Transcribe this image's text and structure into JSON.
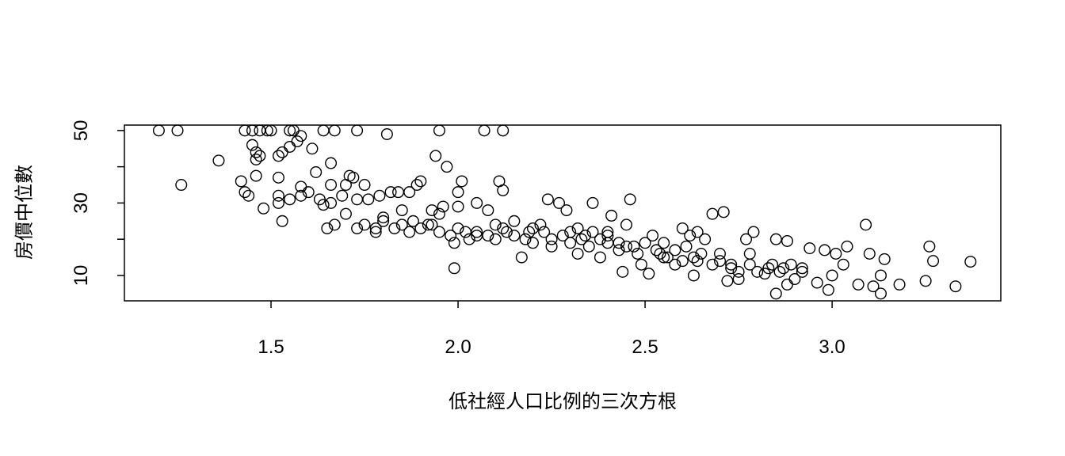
{
  "chart_data": {
    "type": "scatter",
    "xlabel": "低社經人口比例的三次方根",
    "ylabel": "房價中位數",
    "xlim": [
      1.108,
      3.451
    ],
    "ylim": [
      3.0,
      51.5
    ],
    "xticks": [
      1.5,
      {
        "value": 2,
        "label": "2.0"
      },
      2.5,
      {
        "value": 3,
        "label": "3.0"
      }
    ],
    "yticks": [
      10,
      30,
      50
    ],
    "yticks_unlabeled": [
      20,
      40
    ],
    "marker_color": "#000000",
    "x": [
      1.2,
      1.25,
      1.43,
      1.45,
      1.47,
      1.49,
      1.5,
      1.55,
      1.56,
      1.64,
      1.67,
      1.73,
      1.95,
      2.07,
      2.12,
      1.81,
      1.58,
      1.57,
      1.45,
      1.61,
      1.55,
      1.53,
      1.46,
      1.47,
      1.46,
      1.52,
      1.36,
      1.66,
      1.94,
      1.97,
      1.26,
      1.42,
      1.43,
      1.44,
      1.46,
      1.52,
      1.62,
      1.71,
      1.72,
      1.7,
      1.66,
      1.75,
      1.9,
      2.11,
      2.01,
      2.12,
      1.52,
      1.55,
      1.58,
      1.58,
      1.6,
      1.63,
      1.64,
      1.66,
      1.69,
      1.73,
      1.76,
      1.79,
      1.82,
      1.84,
      1.87,
      1.89,
      1.93,
      1.96,
      2.0,
      2.0,
      2.05,
      2.08,
      1.48,
      1.52,
      1.53,
      1.65,
      1.67,
      1.7,
      1.73,
      1.78,
      1.8,
      1.85,
      1.88,
      1.92,
      1.95,
      1.99,
      1.99,
      2.02,
      2.05,
      2.1,
      2.12,
      2.15,
      2.17,
      2.19,
      2.2,
      2.22,
      2.24,
      2.25,
      2.27,
      2.29,
      2.3,
      2.32,
      2.34,
      2.36,
      2.38,
      2.4,
      2.41,
      2.43,
      2.44,
      2.45,
      2.46,
      2.47,
      2.49,
      2.51,
      2.52,
      2.54,
      2.56,
      2.58,
      2.6,
      2.61,
      2.63,
      2.64,
      2.66,
      2.68,
      2.7,
      2.71,
      2.72,
      2.73,
      2.75,
      2.77,
      2.78,
      2.79,
      2.82,
      2.84,
      2.85,
      2.85,
      2.87,
      2.88,
      2.88,
      2.9,
      2.92,
      2.94,
      2.96,
      2.98,
      2.99,
      3.0,
      3.01,
      3.03,
      3.04,
      3.07,
      3.09,
      3.1,
      3.11,
      3.13,
      3.13,
      3.14,
      3.18,
      3.25,
      3.26,
      3.27,
      3.33,
      3.37,
      1.75,
      1.78,
      1.8,
      1.83,
      1.85,
      1.87,
      1.9,
      1.93,
      1.95,
      1.98,
      2.0,
      2.03,
      2.05,
      2.08,
      2.1,
      2.13,
      2.15,
      2.18,
      2.2,
      2.23,
      2.25,
      2.28,
      2.3,
      2.33,
      2.35,
      2.38,
      2.4,
      2.43,
      2.45,
      2.48,
      2.5,
      2.53,
      2.55,
      2.58,
      2.6,
      2.63,
      2.65,
      2.68,
      2.7,
      2.73,
      2.75,
      2.78,
      2.8,
      2.83,
      2.86,
      2.89,
      2.92,
      2.32,
      2.36,
      2.4,
      2.55,
      2.62,
      2.64
    ],
    "values": [
      50,
      50,
      50,
      50,
      50,
      50,
      50,
      50,
      50,
      50,
      50,
      50,
      50,
      50,
      50,
      49,
      48.5,
      47,
      46,
      45,
      45.5,
      44,
      44,
      43,
      42,
      43,
      41.7,
      41,
      43,
      40,
      35,
      36,
      33,
      32,
      37.5,
      37,
      38.5,
      37.5,
      37,
      35,
      35,
      35,
      36,
      36,
      36,
      33.5,
      32,
      31,
      32,
      34.5,
      33,
      31,
      29.5,
      30,
      32,
      31,
      31,
      32,
      33,
      33,
      33,
      35,
      28,
      29,
      33,
      29,
      30,
      28,
      28.5,
      30,
      25,
      23,
      24,
      27,
      23,
      23,
      26,
      28,
      25,
      24,
      27,
      19,
      12,
      22,
      21,
      24,
      23,
      25,
      15,
      22,
      19,
      24,
      31,
      18,
      30,
      28,
      22,
      16,
      21,
      30,
      15,
      22,
      26.5,
      19,
      11,
      24,
      31,
      18,
      13,
      10.5,
      21,
      16,
      15,
      13,
      23,
      18,
      10,
      14,
      20,
      27,
      16,
      27.5,
      8.5,
      12,
      9,
      20,
      16,
      22,
      10.5,
      13,
      5,
      20,
      12,
      7.5,
      19.5,
      9,
      12,
      17.5,
      8,
      17,
      6,
      10,
      16,
      13,
      18,
      7.5,
      24,
      16,
      7,
      5,
      10,
      14.5,
      7.5,
      8.5,
      18,
      14,
      7,
      13.8,
      24,
      22,
      25,
      23,
      24,
      22,
      23,
      24,
      22,
      21,
      23,
      20,
      22,
      21,
      20,
      22,
      21,
      20,
      23,
      22,
      20,
      21,
      19,
      20,
      18,
      20,
      19,
      17,
      18,
      16,
      19,
      17,
      15,
      17,
      14,
      15,
      16,
      13,
      14,
      13,
      11,
      13,
      11,
      12,
      11,
      13,
      11,
      23,
      22,
      21,
      19,
      21,
      22
    ]
  }
}
